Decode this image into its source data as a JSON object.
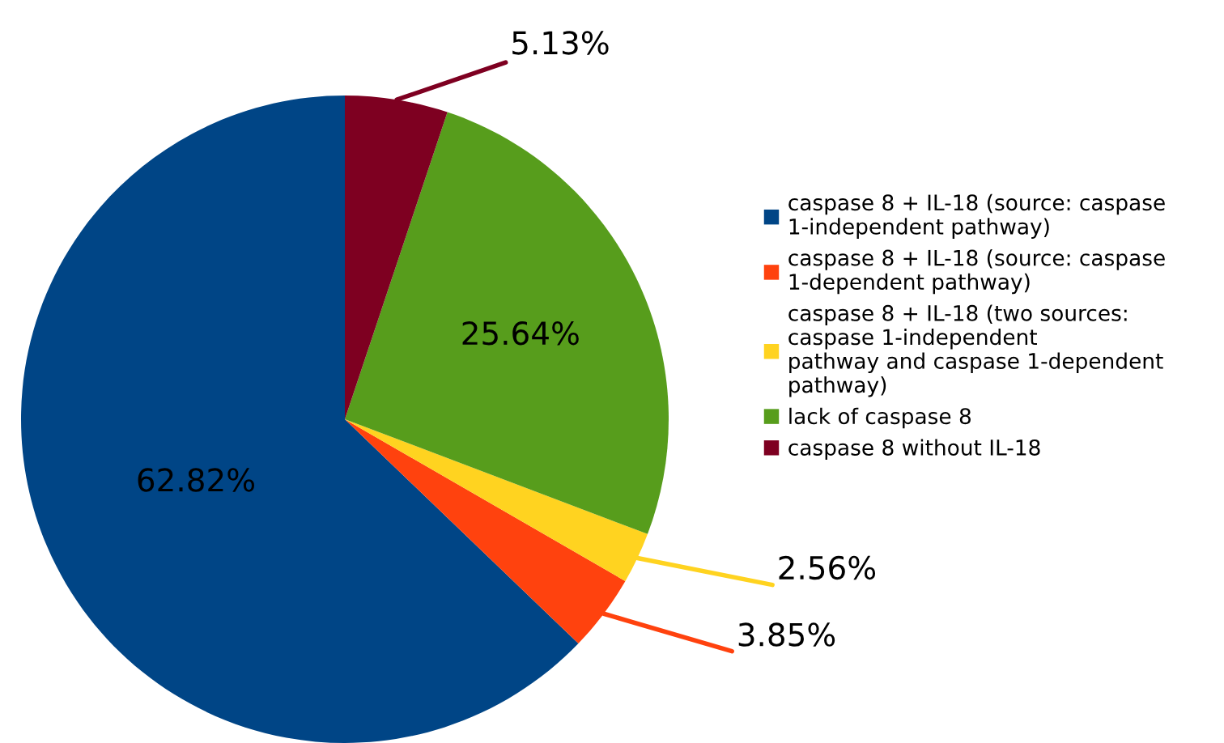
{
  "chart_data": {
    "type": "pie",
    "categories": [
      "caspase 8 + IL-18 (source: caspase\n1-independent pathway)",
      "caspase 8 + IL-18 (source: caspase\n1-dependent pathway)",
      "caspase 8 + IL-18 (two sources:\ncaspase 1-independent\npathway and caspase 1-dependent\npathway)",
      "lack of caspase 8",
      "caspase 8 without IL-18"
    ],
    "values": [
      62.82,
      3.85,
      2.56,
      25.64,
      5.13
    ],
    "colors": [
      "#004586",
      "#ff420e",
      "#ffd320",
      "#579d1c",
      "#7e0021"
    ],
    "value_labels": [
      "62.82%",
      "3.85%",
      "2.56%",
      "25.64%",
      "5.13%"
    ],
    "legend": "right"
  }
}
